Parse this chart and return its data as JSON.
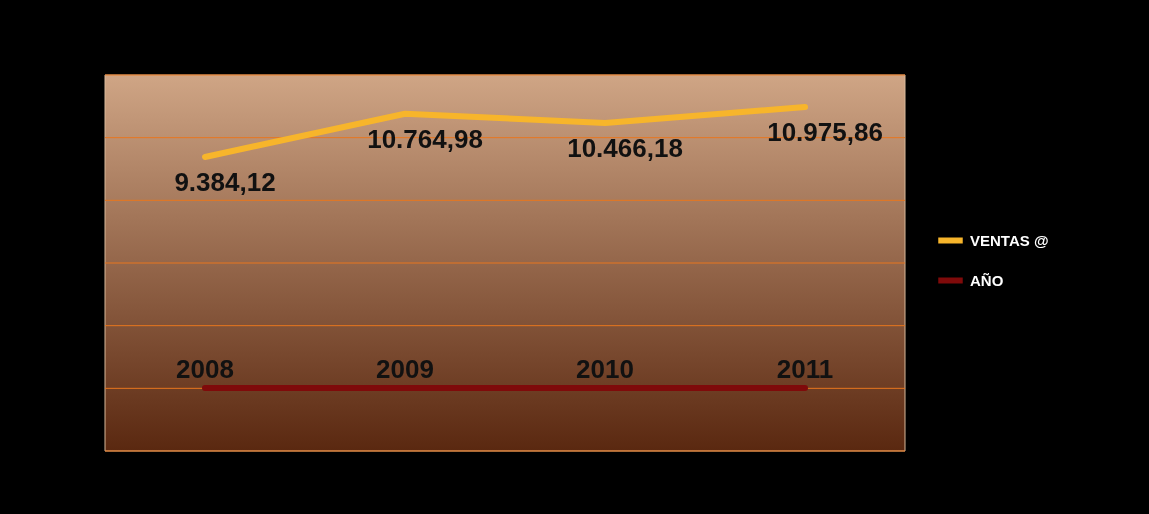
{
  "chart_data": {
    "type": "line",
    "categories": [
      null,
      null,
      null,
      null
    ],
    "series": [
      {
        "name": "VENTAS @",
        "color": "#f7b52b",
        "values": [
          9384.12,
          10764.98,
          10466.18,
          10975.86
        ],
        "value_labels": [
          "9.384,12",
          "10.764,98",
          "10.466,18",
          "10.975,86"
        ]
      },
      {
        "name": "AÑO",
        "color": "#7f0a0a",
        "values": [
          2008,
          2009,
          2010,
          2011
        ],
        "value_labels": [
          "2008",
          "2009",
          "2010",
          "2011"
        ]
      }
    ],
    "ylim": [
      0,
      12000
    ],
    "yticks": [
      {
        "value": 0,
        "label": null
      },
      {
        "value": 2000,
        "label": null
      },
      {
        "value": 4000,
        "label": null
      },
      {
        "value": 6000,
        "label": null
      },
      {
        "value": 8000,
        "label": null
      },
      {
        "value": 10000,
        "label": null
      },
      {
        "value": 12000,
        "label": null
      }
    ],
    "grid": "y",
    "legend": "right",
    "marker": "none",
    "line_style": "solid"
  }
}
